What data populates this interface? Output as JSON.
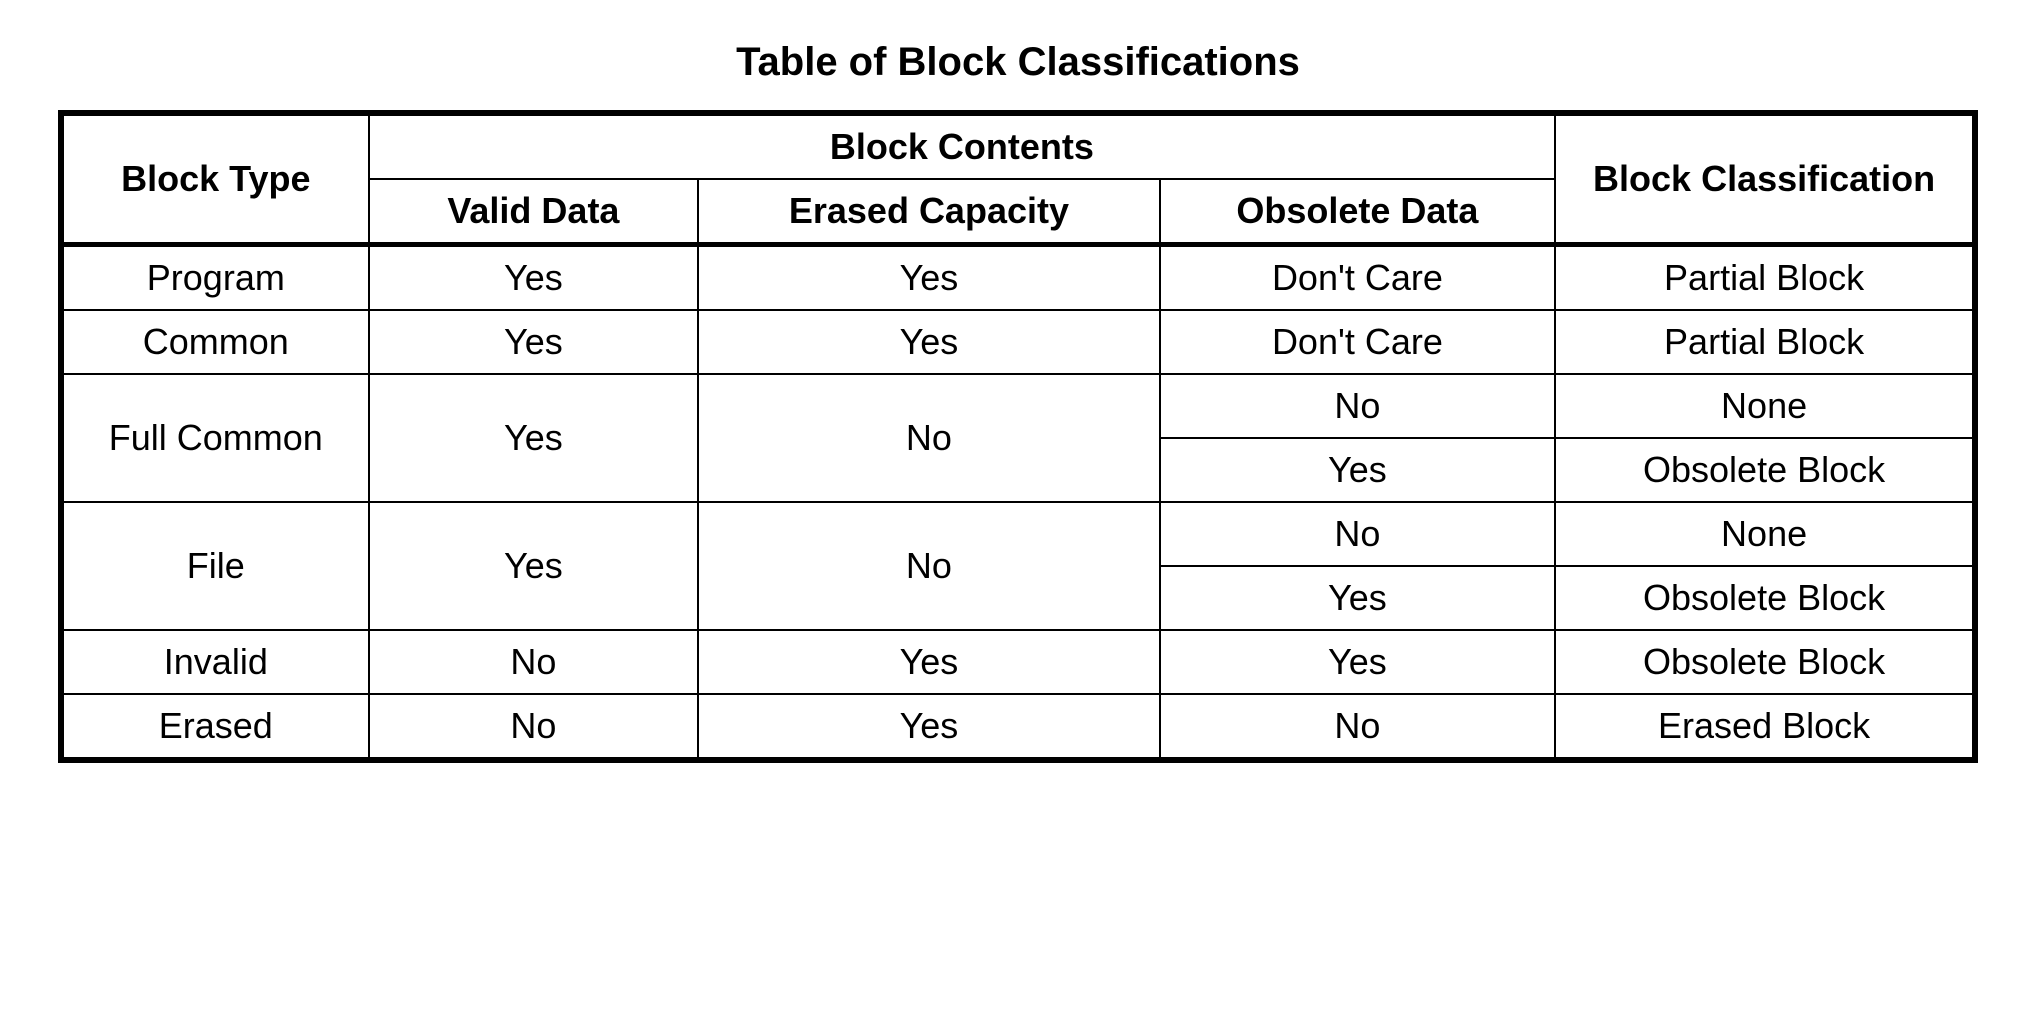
{
  "title": "Table of Block Classifications",
  "table": {
    "headers": {
      "block_type": "Block Type",
      "block_contents": "Block Contents",
      "valid_data": "Valid Data",
      "erased_capacity": "Erased Capacity",
      "obsolete_data": "Obsolete Data",
      "block_classification": "Block Classification"
    },
    "rows": [
      {
        "block_type": "Program",
        "valid_data": "Yes",
        "erased_capacity": "Yes",
        "obsolete_data": "Don't Care",
        "classification": "Partial Block"
      },
      {
        "block_type": "Common",
        "valid_data": "Yes",
        "erased_capacity": "Yes",
        "obsolete_data": "Don't Care",
        "classification": "Partial Block"
      },
      {
        "block_type": "Full Common",
        "valid_data": "Yes",
        "erased_capacity": "No",
        "obsolete_data_1": "No",
        "classification_1": "None",
        "obsolete_data_2": "Yes",
        "classification_2": "Obsolete Block"
      },
      {
        "block_type": "File",
        "valid_data": "Yes",
        "erased_capacity": "No",
        "obsolete_data_1": "No",
        "classification_1": "None",
        "obsolete_data_2": "Yes",
        "classification_2": "Obsolete Block"
      },
      {
        "block_type": "Invalid",
        "valid_data": "No",
        "erased_capacity": "Yes",
        "obsolete_data": "Yes",
        "classification": "Obsolete Block"
      },
      {
        "block_type": "Erased",
        "valid_data": "No",
        "erased_capacity": "Yes",
        "obsolete_data": "No",
        "classification": "Erased Block"
      }
    ],
    "styling": {
      "title_fontsize": 40,
      "header_fontsize": 36,
      "cell_fontsize": 36,
      "border_color": "#000000",
      "outer_border_width": 6,
      "inner_border_width": 2,
      "header_border_width": 5,
      "background_color": "#ffffff",
      "text_color": "#000000",
      "column_widths": {
        "block_type": 280,
        "valid_data": 300,
        "erased_capacity": 420,
        "obsolete_data": 360,
        "classification": 360
      }
    }
  }
}
